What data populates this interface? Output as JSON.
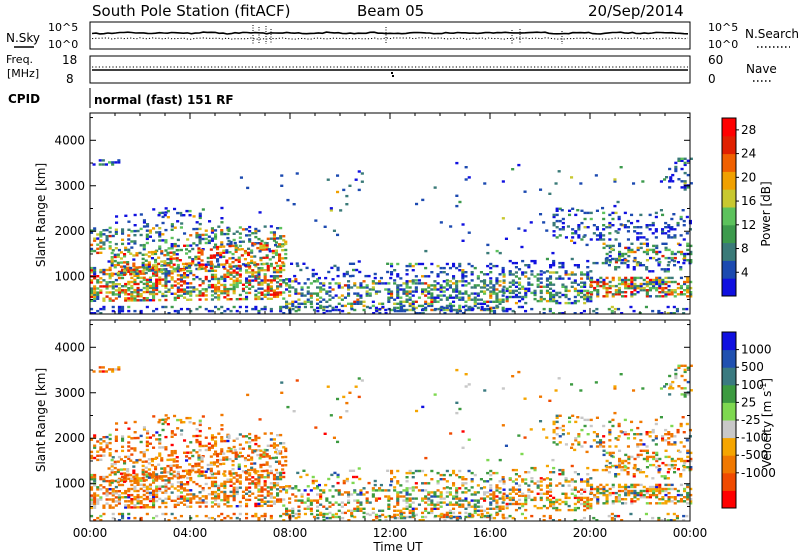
{
  "header": {
    "station": "South Pole Station (fitACF)",
    "beam": "Beam 05",
    "date": "20/Sep/2014"
  },
  "noise_panel": {
    "left_label": "N.Sky",
    "right_label": "N.Search",
    "ticks_left": [
      "10^5",
      "10^0"
    ],
    "ticks_right": [
      "10^5",
      "10^0"
    ]
  },
  "freq_panel": {
    "left_label_1": "Freq.",
    "left_label_2": "[MHz]",
    "right_label": "Nave",
    "ticks_left": [
      "18",
      "8"
    ],
    "ticks_right": [
      "60",
      "0"
    ]
  },
  "cpid": {
    "label": "CPID",
    "mode": "normal (fast) 151 RF"
  },
  "colors": {
    "power": [
      "#1010e0",
      "#1c4ab0",
      "#3a7a78",
      "#3c9a4c",
      "#5cc25c",
      "#c8c830",
      "#f0a000",
      "#f06000",
      "#e02000",
      "#ff0000"
    ],
    "velocity": [
      "#ff0000",
      "#f04a00",
      "#f07800",
      "#f5a500",
      "#c8c8c8",
      "#7ed850",
      "#3c9a40",
      "#3a7a80",
      "#2050b0",
      "#1010e0"
    ]
  },
  "chart_data": [
    {
      "type": "heatmap",
      "name": "power",
      "x_ticks": [
        "00:00",
        "04:00",
        "08:00",
        "12:00",
        "16:00",
        "20:00",
        "00:00"
      ],
      "x_range_hours": [
        0,
        24
      ],
      "xlabel": "",
      "ylabel": "Slant Range [km]",
      "y_ticks": [
        1000,
        2000,
        3000,
        4000
      ],
      "ylim": [
        180,
        4600
      ],
      "colorbar_label": "Power [dB]",
      "colorbar_ticks": [
        4,
        8,
        12,
        16,
        20,
        24,
        28
      ],
      "colorbar_range": [
        0,
        30
      ]
    },
    {
      "type": "heatmap",
      "name": "velocity",
      "x_ticks": [
        "00:00",
        "04:00",
        "08:00",
        "12:00",
        "16:00",
        "20:00",
        "00:00"
      ],
      "x_range_hours": [
        0,
        24
      ],
      "xlabel": "Time UT",
      "ylabel": "Slant Range [km]",
      "y_ticks": [
        1000,
        2000,
        3000,
        4000
      ],
      "ylim": [
        180,
        4600
      ],
      "colorbar_label": "Velocity [m s",
      "colorbar_label_sup": "-1",
      "colorbar_label_end": "]",
      "colorbar_ticks": [
        1000,
        500,
        100,
        25,
        -25,
        -100,
        -500,
        -1000
      ]
    }
  ]
}
